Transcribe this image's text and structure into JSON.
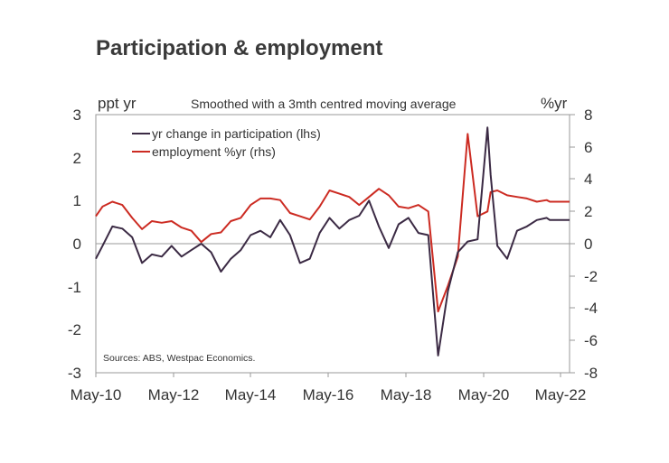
{
  "chart_data": {
    "type": "line",
    "title": "Participation & employment",
    "subtitle": "Smoothed with a 3mth centred moving average",
    "source": "Sources: ABS, Westpac Economics.",
    "left_axis_label": "ppt yr",
    "right_axis_label": "%yr",
    "x_tick_labels": [
      "May-10",
      "May-12",
      "May-14",
      "May-16",
      "May-18",
      "May-20",
      "May-22"
    ],
    "x_range": [
      2010.33,
      2022.33
    ],
    "left_axis": {
      "range": [
        -3,
        3
      ],
      "ticks": [
        "3",
        "2",
        "1",
        "0",
        "-1",
        "-2",
        "-3"
      ]
    },
    "right_axis": {
      "range": [
        -8,
        8
      ],
      "ticks": [
        "8",
        "6",
        "4",
        "2",
        "0",
        "-2",
        "-4",
        "-6",
        "-8"
      ]
    },
    "zero_line": true,
    "grid": false,
    "legend_position": "top-left",
    "series": [
      {
        "name": "yr change in participation (lhs)",
        "axis": "left",
        "color": "#3b2a44",
        "x": [
          2010.33,
          2010.5,
          2010.75,
          2011.0,
          2011.25,
          2011.5,
          2011.75,
          2012.0,
          2012.25,
          2012.5,
          2012.75,
          2013.0,
          2013.25,
          2013.5,
          2013.75,
          2014.0,
          2014.25,
          2014.5,
          2014.75,
          2015.0,
          2015.25,
          2015.5,
          2015.75,
          2016.0,
          2016.25,
          2016.5,
          2016.75,
          2017.0,
          2017.25,
          2017.5,
          2017.75,
          2018.0,
          2018.25,
          2018.5,
          2018.75,
          2019.0,
          2019.25,
          2019.5,
          2019.75,
          2020.0,
          2020.25,
          2020.33,
          2020.5,
          2020.75,
          2021.0,
          2021.25,
          2021.5,
          2021.75,
          2021.83,
          2022.0,
          2022.25,
          2022.33
        ],
        "values": [
          -0.35,
          -0.05,
          0.4,
          0.35,
          0.15,
          -0.45,
          -0.25,
          -0.3,
          -0.05,
          -0.3,
          -0.15,
          0.0,
          -0.2,
          -0.65,
          -0.35,
          -0.15,
          0.2,
          0.3,
          0.15,
          0.55,
          0.2,
          -0.45,
          -0.35,
          0.25,
          0.6,
          0.35,
          0.55,
          0.65,
          1.0,
          0.4,
          -0.1,
          0.45,
          0.6,
          0.25,
          0.2,
          -2.6,
          -1.1,
          -0.2,
          0.05,
          0.1,
          2.7,
          1.6,
          -0.05,
          -0.35,
          0.3,
          0.4,
          0.55,
          0.6,
          0.55,
          0.55,
          0.55,
          0.55
        ]
      },
      {
        "name": "employment %yr (rhs)",
        "axis": "right",
        "color": "#cc2b22",
        "x": [
          2010.33,
          2010.5,
          2010.75,
          2011.0,
          2011.25,
          2011.5,
          2011.75,
          2012.0,
          2012.25,
          2012.5,
          2012.75,
          2013.0,
          2013.25,
          2013.5,
          2013.75,
          2014.0,
          2014.25,
          2014.5,
          2014.75,
          2015.0,
          2015.25,
          2015.5,
          2015.75,
          2016.0,
          2016.25,
          2016.5,
          2016.75,
          2017.0,
          2017.25,
          2017.5,
          2017.75,
          2018.0,
          2018.25,
          2018.5,
          2018.75,
          2019.0,
          2019.25,
          2019.5,
          2019.75,
          2020.0,
          2020.25,
          2020.33,
          2020.5,
          2020.75,
          2021.0,
          2021.25,
          2021.5,
          2021.75,
          2021.83,
          2022.0,
          2022.25,
          2022.33
        ],
        "values": [
          1.7,
          2.3,
          2.6,
          2.4,
          1.6,
          0.9,
          1.4,
          1.3,
          1.4,
          1.0,
          0.8,
          0.1,
          0.6,
          0.7,
          1.4,
          1.6,
          2.4,
          2.8,
          2.8,
          2.7,
          1.9,
          1.7,
          1.5,
          2.3,
          3.3,
          3.1,
          2.9,
          2.4,
          2.9,
          3.4,
          3.0,
          2.3,
          2.2,
          2.4,
          2.0,
          -4.2,
          -2.6,
          -0.8,
          6.8,
          1.7,
          2.0,
          3.2,
          3.3,
          3.0,
          2.9,
          2.8,
          2.6,
          2.7,
          2.6,
          2.6,
          2.6,
          2.6
        ]
      }
    ]
  }
}
